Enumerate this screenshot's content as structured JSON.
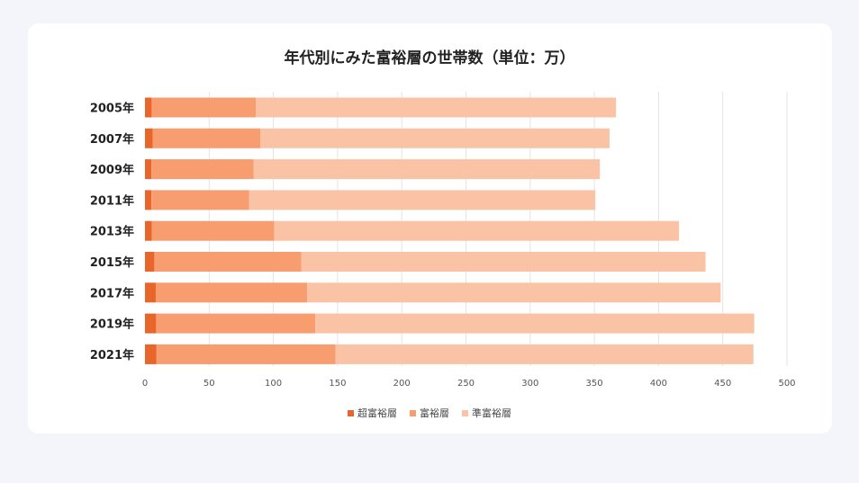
{
  "chart_data": {
    "type": "bar",
    "orientation": "horizontal",
    "stacked": true,
    "title": "年代別にみた富裕層の世帯数（単位：万）",
    "categories": [
      "2005年",
      "2007年",
      "2009年",
      "2011年",
      "2013年",
      "2015年",
      "2017年",
      "2019年",
      "2021年"
    ],
    "series": [
      {
        "name": "超富裕層",
        "color": "#e8662a",
        "values": [
          5.2,
          6.0,
          5.0,
          5.0,
          5.4,
          7.3,
          8.4,
          8.7,
          9.0
        ]
      },
      {
        "name": "富裕層",
        "color": "#f79d70",
        "values": [
          81.3,
          84.0,
          79.5,
          76.0,
          95.3,
          114.4,
          118.0,
          124.0,
          139.5
        ]
      },
      {
        "name": "準富裕層",
        "color": "#fbc3a6",
        "values": [
          280.4,
          271.8,
          269.8,
          269.8,
          315.2,
          314.9,
          322.0,
          341.8,
          325.4
        ]
      }
    ],
    "xlim": [
      0,
      500
    ],
    "xticks": [
      0,
      50,
      100,
      150,
      200,
      250,
      300,
      350,
      400,
      450,
      500
    ],
    "grid": true,
    "legend_position": "bottom"
  }
}
